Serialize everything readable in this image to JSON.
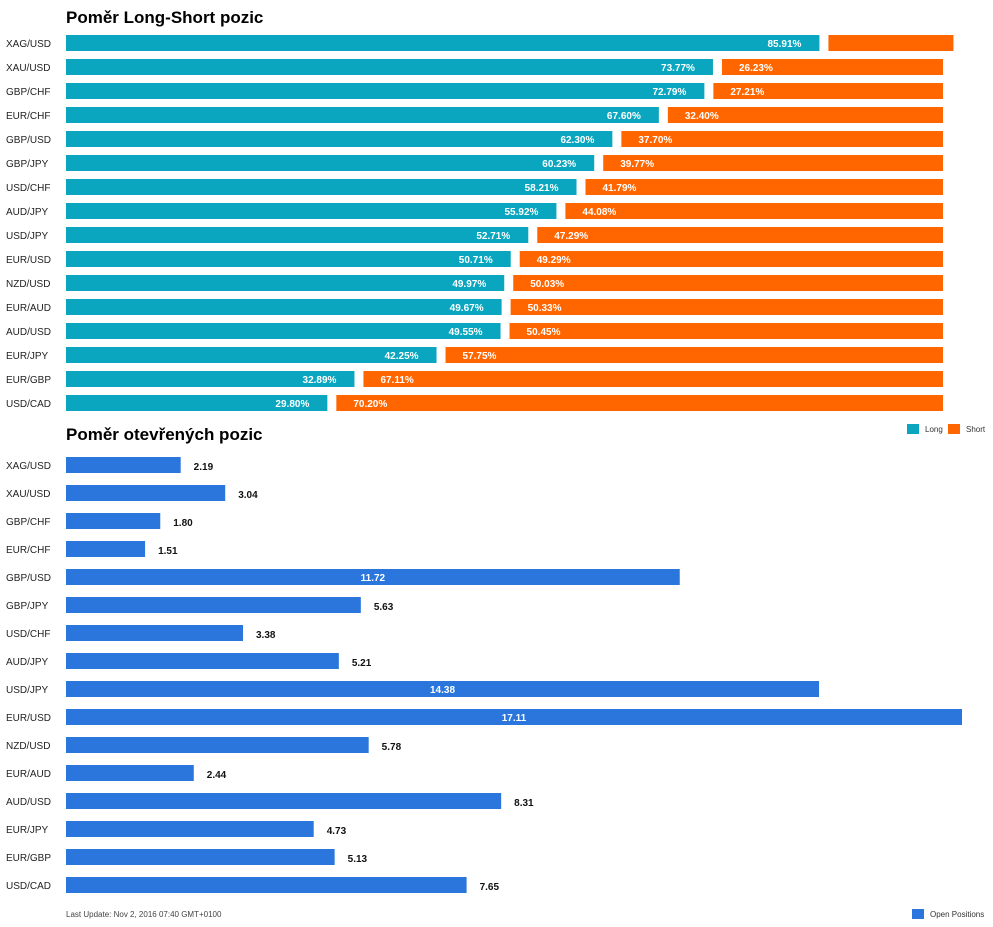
{
  "colors": {
    "long": "#0aa6bf",
    "short": "#ff6600",
    "open": "#2a76dc"
  },
  "chart_data": [
    {
      "type": "bar",
      "stacked": true,
      "orientation": "horizontal",
      "title": "Poměr Long-Short pozic",
      "categories": [
        "XAG/USD",
        "XAU/USD",
        "GBP/CHF",
        "EUR/CHF",
        "GBP/USD",
        "GBP/JPY",
        "USD/CHF",
        "AUD/JPY",
        "USD/JPY",
        "EUR/USD",
        "NZD/USD",
        "EUR/AUD",
        "AUD/USD",
        "EUR/JPY",
        "EUR/GBP",
        "USD/CAD"
      ],
      "series": [
        {
          "name": "Long",
          "values": [
            85.91,
            73.77,
            72.79,
            67.6,
            62.3,
            60.23,
            58.21,
            55.92,
            52.71,
            50.71,
            49.97,
            49.67,
            49.55,
            42.25,
            32.89,
            29.8
          ],
          "labels": [
            "85.91%",
            "73.77%",
            "72.79%",
            "67.60%",
            "62.30%",
            "60.23%",
            "58.21%",
            "55.92%",
            "52.71%",
            "50.71%",
            "49.97%",
            "49.67%",
            "49.55%",
            "42.25%",
            "32.89%",
            "29.80%"
          ]
        },
        {
          "name": "Short",
          "values": [
            14.09,
            26.23,
            27.21,
            32.4,
            37.7,
            39.77,
            41.79,
            44.08,
            47.29,
            49.29,
            50.03,
            50.33,
            50.45,
            57.75,
            67.11,
            70.2
          ],
          "labels": [
            "",
            "26.23%",
            "27.21%",
            "32.40%",
            "37.70%",
            "39.77%",
            "41.79%",
            "44.08%",
            "47.29%",
            "49.29%",
            "50.03%",
            "50.33%",
            "50.45%",
            "57.75%",
            "67.11%",
            "70.20%"
          ]
        }
      ],
      "legend_position": "bottom-right"
    },
    {
      "type": "bar",
      "orientation": "horizontal",
      "title": "Poměr otevřených pozic",
      "categories": [
        "XAG/USD",
        "XAU/USD",
        "GBP/CHF",
        "EUR/CHF",
        "GBP/USD",
        "GBP/JPY",
        "USD/CHF",
        "AUD/JPY",
        "USD/JPY",
        "EUR/USD",
        "NZD/USD",
        "EUR/AUD",
        "AUD/USD",
        "EUR/JPY",
        "EUR/GBP",
        "USD/CAD"
      ],
      "series": [
        {
          "name": "Open Positions",
          "values": [
            2.19,
            3.04,
            1.8,
            1.51,
            11.72,
            5.63,
            3.38,
            5.21,
            14.38,
            17.11,
            5.78,
            2.44,
            8.31,
            4.73,
            5.13,
            7.65
          ],
          "labels": [
            "2.19",
            "3.04",
            "1.80",
            "1.51",
            "11.72",
            "5.63",
            "3.38",
            "5.21",
            "14.38",
            "17.11",
            "5.78",
            "2.44",
            "8.31",
            "4.73",
            "5.13",
            "7.65"
          ]
        }
      ],
      "legend_position": "bottom-right"
    }
  ],
  "footer": {
    "last_update": "Last Update: Nov 2, 2016 07:40 GMT+0100"
  }
}
